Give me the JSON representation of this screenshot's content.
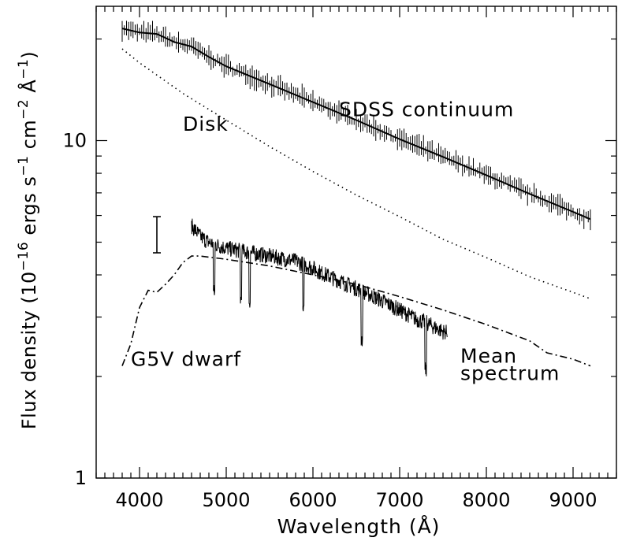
{
  "chart_data": {
    "type": "line",
    "title": "",
    "xlabel": "Wavelength (Å)",
    "ylabel": "Flux density (10^-16 ergs s^-1 cm^-2 Å^-1)",
    "ylabel_parts": {
      "prefix": "Flux density (10",
      "exp1": "−16",
      "mid1": " ergs s",
      "exp2": "−1",
      "mid2": " cm",
      "exp3": "−2",
      "mid3": " Å",
      "exp4": "−1",
      "suffix": ")"
    },
    "xlim": [
      3500,
      9500
    ],
    "ylim": [
      1,
      25
    ],
    "yscale": "log",
    "x_ticks": [
      4000,
      5000,
      6000,
      7000,
      8000,
      9000
    ],
    "x_tick_labels": [
      "4000",
      "5000",
      "6000",
      "7000",
      "8000",
      "9000"
    ],
    "y_ticks": [
      1,
      10
    ],
    "y_tick_labels": [
      "1",
      "10"
    ],
    "grid": false,
    "series": [
      {
        "name": "SDSS continuum",
        "style": "solid",
        "x": [
          3800,
          4000,
          4200,
          4400,
          4600,
          4800,
          5000,
          5500,
          6000,
          6500,
          7000,
          7500,
          8000,
          8500,
          9000,
          9200
        ],
        "y": [
          21.5,
          20.9,
          20.7,
          19.6,
          19.0,
          17.7,
          16.6,
          14.7,
          13.0,
          11.5,
          10.1,
          8.95,
          7.9,
          6.95,
          6.15,
          5.85
        ]
      },
      {
        "name": "Disk",
        "style": "dotted",
        "x": [
          3800,
          4000,
          4500,
          5000,
          5500,
          6000,
          6500,
          7000,
          7500,
          8000,
          8500,
          9000,
          9200
        ],
        "y": [
          18.7,
          17.0,
          13.8,
          11.5,
          9.6,
          8.1,
          6.9,
          5.95,
          5.1,
          4.5,
          3.95,
          3.55,
          3.4
        ]
      },
      {
        "name": "G5V dwarf",
        "style": "dash-dot",
        "x": [
          3800,
          3900,
          4000,
          4100,
          4200,
          4300,
          4400,
          4500,
          4600,
          4700,
          5000,
          5500,
          6000,
          6500,
          7000,
          7500,
          8000,
          8500,
          8700,
          9000,
          9200
        ],
        "y": [
          2.15,
          2.5,
          3.2,
          3.6,
          3.55,
          3.75,
          4.0,
          4.35,
          4.55,
          4.55,
          4.45,
          4.25,
          4.0,
          3.75,
          3.45,
          3.15,
          2.85,
          2.55,
          2.35,
          2.25,
          2.15
        ]
      },
      {
        "name": "Mean spectrum",
        "style": "noisy",
        "x": [
          4600,
          4700,
          4800,
          4900,
          5000,
          5100,
          5200,
          5300,
          5400,
          5500,
          5600,
          5700,
          5800,
          5900,
          6000,
          6100,
          6200,
          6300,
          6400,
          6500,
          6600,
          6700,
          6800,
          6900,
          7000,
          7100,
          7200,
          7300,
          7400,
          7500,
          7550
        ],
        "y": [
          5.6,
          5.2,
          5.0,
          4.9,
          4.8,
          4.75,
          4.7,
          4.65,
          4.6,
          4.55,
          4.5,
          4.45,
          4.4,
          4.3,
          4.2,
          4.05,
          3.95,
          3.85,
          3.75,
          3.65,
          3.55,
          3.45,
          3.35,
          3.25,
          3.15,
          3.05,
          2.95,
          2.9,
          2.8,
          2.72,
          2.7
        ]
      }
    ],
    "annotations": [
      {
        "text": "SDSS continuum",
        "x": 6300,
        "y": 11.8
      },
      {
        "text": "Disk",
        "x": 4500,
        "y": 10.7
      },
      {
        "text": "G5V dwarf",
        "x": 3900,
        "y": 2.15
      },
      {
        "text": "Mean",
        "x": 7700,
        "y": 2.2
      },
      {
        "text": "spectrum",
        "x": 7700,
        "y": 1.95
      }
    ],
    "error_bar": {
      "x": 4200,
      "y_low": 4.65,
      "y_high": 5.95
    }
  }
}
